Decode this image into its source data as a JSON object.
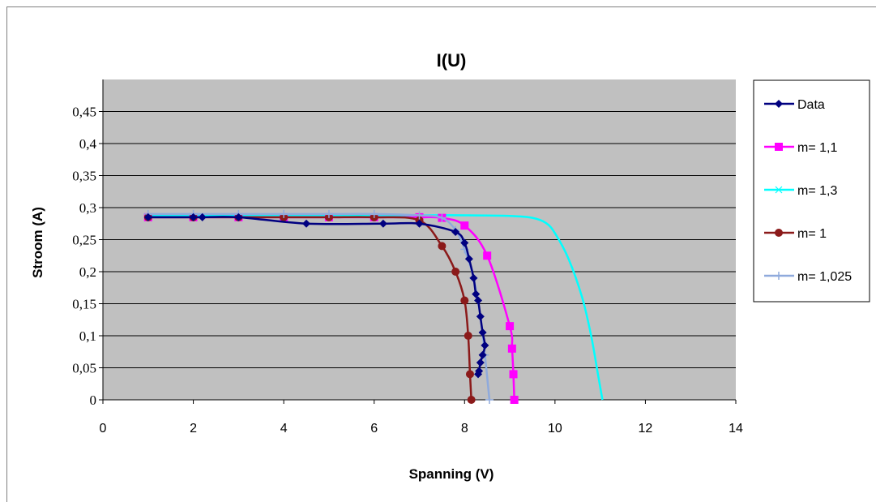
{
  "chart_data": {
    "type": "line",
    "title": "I(U)",
    "xlabel": "Spanning (V)",
    "ylabel": "Stroom (A)",
    "xlim": [
      0,
      14
    ],
    "ylim": [
      0,
      0.5
    ],
    "x_ticks": [
      0,
      2,
      4,
      6,
      8,
      10,
      12,
      14
    ],
    "x_tick_labels": [
      "0",
      "2",
      "4",
      "6",
      "8",
      "10",
      "12",
      "14"
    ],
    "y_ticks": [
      0,
      0.05,
      0.1,
      0.15,
      0.2,
      0.25,
      0.3,
      0.35,
      0.4,
      0.45
    ],
    "y_tick_labels": [
      "0",
      "0,05",
      "0,1",
      "0,15",
      "0,2",
      "0,25",
      "0,3",
      "0,35",
      "0,4",
      "0,45"
    ],
    "grid": true,
    "legend_position": "right",
    "plot_background": "#c0c0c0",
    "series": [
      {
        "name": "Data",
        "color": "#000080",
        "marker": "diamond",
        "points": [
          [
            1.0,
            0.285
          ],
          [
            2.0,
            0.285
          ],
          [
            2.2,
            0.285
          ],
          [
            3.0,
            0.285
          ],
          [
            4.5,
            0.275
          ],
          [
            6.2,
            0.275
          ],
          [
            7.0,
            0.275
          ],
          [
            7.8,
            0.262
          ],
          [
            8.0,
            0.245
          ],
          [
            8.1,
            0.22
          ],
          [
            8.2,
            0.19
          ],
          [
            8.25,
            0.165
          ],
          [
            8.3,
            0.155
          ],
          [
            8.35,
            0.13
          ],
          [
            8.4,
            0.105
          ],
          [
            8.45,
            0.085
          ],
          [
            8.4,
            0.07
          ],
          [
            8.35,
            0.058
          ],
          [
            8.32,
            0.045
          ],
          [
            8.3,
            0.04
          ]
        ]
      },
      {
        "name": "m= 1,1",
        "color": "#ff00ff",
        "marker": "square",
        "points": [
          [
            1,
            0.285
          ],
          [
            2,
            0.285
          ],
          [
            3,
            0.285
          ],
          [
            4,
            0.285
          ],
          [
            5,
            0.285
          ],
          [
            6,
            0.285
          ],
          [
            7,
            0.285
          ],
          [
            7.5,
            0.284
          ],
          [
            8,
            0.272
          ],
          [
            8.5,
            0.225
          ],
          [
            9,
            0.115
          ],
          [
            9.05,
            0.08
          ],
          [
            9.08,
            0.04
          ],
          [
            9.1,
            0
          ]
        ]
      },
      {
        "name": "m= 1,3",
        "color": "#00ffff",
        "marker": "none",
        "points": [
          [
            1,
            0.288
          ],
          [
            3,
            0.288
          ],
          [
            5,
            0.288
          ],
          [
            7,
            0.288
          ],
          [
            8,
            0.288
          ],
          [
            9,
            0.287
          ],
          [
            9.5,
            0.284
          ],
          [
            9.8,
            0.276
          ],
          [
            10,
            0.26
          ],
          [
            10.3,
            0.22
          ],
          [
            10.6,
            0.16
          ],
          [
            10.8,
            0.1
          ],
          [
            10.95,
            0.04
          ],
          [
            11.05,
            0
          ]
        ]
      },
      {
        "name": "m= 1",
        "color": "#8b1a1a",
        "marker": "circle",
        "points": [
          [
            1,
            0.285
          ],
          [
            2,
            0.285
          ],
          [
            3,
            0.285
          ],
          [
            4,
            0.285
          ],
          [
            5,
            0.285
          ],
          [
            6,
            0.285
          ],
          [
            7,
            0.28
          ],
          [
            7.5,
            0.24
          ],
          [
            7.8,
            0.2
          ],
          [
            8,
            0.155
          ],
          [
            8.08,
            0.1
          ],
          [
            8.12,
            0.04
          ],
          [
            8.15,
            0
          ]
        ]
      },
      {
        "name": "m= 1,025",
        "color": "#8faadc",
        "marker": "plus",
        "points": [
          [
            1,
            0.29
          ],
          [
            2,
            0.29
          ],
          [
            3,
            0.29
          ],
          [
            4,
            0.29
          ],
          [
            5,
            0.29
          ],
          [
            6,
            0.29
          ],
          [
            7,
            0.288
          ],
          [
            7.5,
            0.284
          ],
          [
            7.8,
            0.265
          ],
          [
            8.0,
            0.235
          ],
          [
            8.2,
            0.19
          ],
          [
            8.35,
            0.13
          ],
          [
            8.45,
            0.07
          ],
          [
            8.55,
            0
          ]
        ]
      }
    ]
  }
}
